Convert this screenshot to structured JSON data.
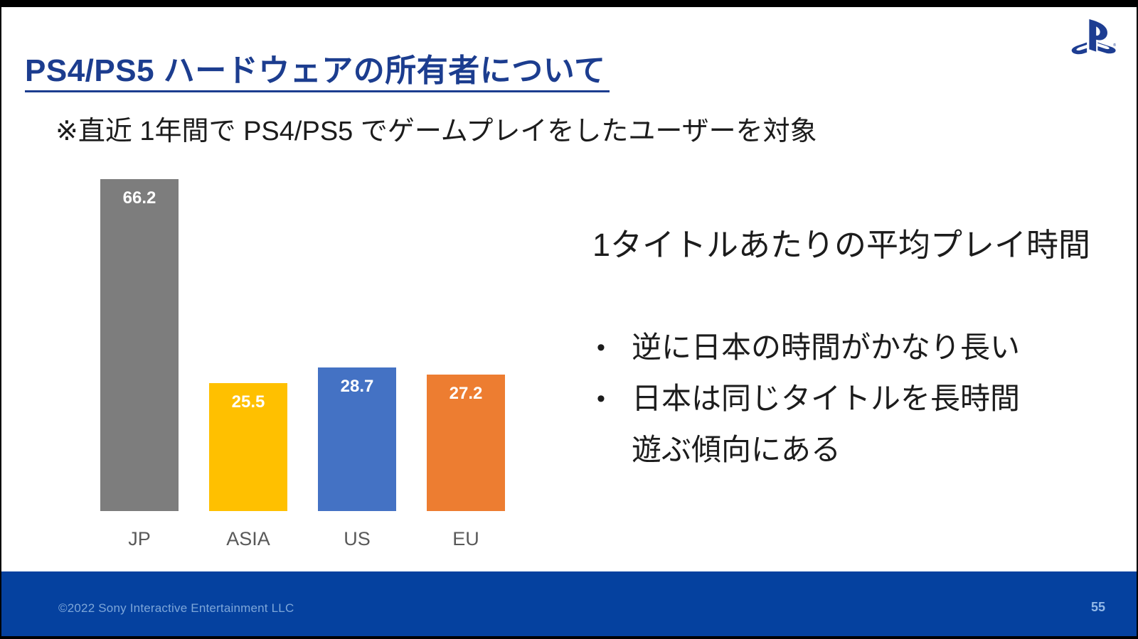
{
  "slide": {
    "title": "PS4/PS5 ハードウェアの所有者について",
    "subtitle": "※直近 1年間で PS4/PS5 でゲームプレイをしたユーザーを対象"
  },
  "logo": {
    "name": "PlayStation",
    "registered_mark": "®",
    "color": "#1d3d92"
  },
  "chart_data": {
    "type": "bar",
    "categories": [
      "JP",
      "ASIA",
      "US",
      "EU"
    ],
    "values": [
      66.2,
      25.5,
      28.7,
      27.2
    ],
    "bar_colors": [
      "#7d7d7d",
      "#ffc000",
      "#4472c4",
      "#ed7d31"
    ],
    "value_label_color": "#ffffff",
    "category_label_color": "#595959",
    "title": "",
    "xlabel": "",
    "ylabel": "",
    "ylim": [
      0,
      70
    ],
    "grid": false,
    "legend": false,
    "axes_shown": false,
    "value_labels_position": "inside-top"
  },
  "commentary": {
    "heading": "1タイトルあたりの平均プレイ時間",
    "bullets": [
      "逆に日本の時間がかなり長い",
      "日本は同じタイトルを長時間\n遊ぶ傾向にある"
    ]
  },
  "footer": {
    "copyright": "©2022 Sony Interactive Entertainment LLC",
    "page_number": "55",
    "background_color": "#05419f"
  }
}
